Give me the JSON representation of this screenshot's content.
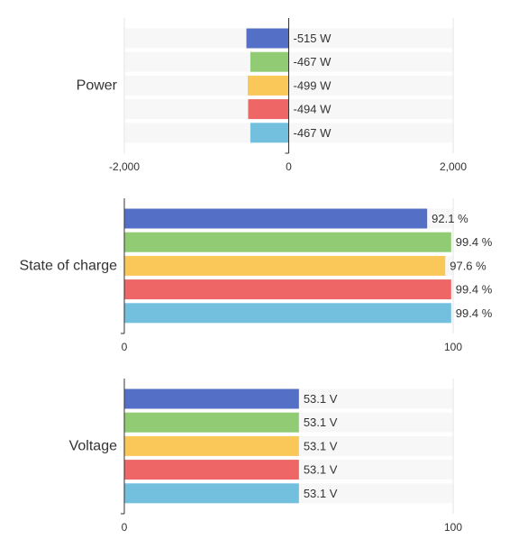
{
  "chart_data": [
    {
      "type": "bar",
      "orientation": "horizontal",
      "category": "Power",
      "values": [
        -515,
        -467,
        -499,
        -494,
        -467
      ],
      "value_labels": [
        "-515 W",
        "-467 W",
        "-499 W",
        "-494 W",
        "-467 W"
      ],
      "colors": [
        "#5470c6",
        "#91cc75",
        "#fac858",
        "#ee6666",
        "#73c0de"
      ],
      "xlim": [
        -2000,
        2000
      ],
      "ticks": [
        -2000,
        0,
        2000
      ],
      "tick_labels": [
        "-2,000",
        "0",
        "2,000"
      ],
      "grid": true,
      "legend": "none"
    },
    {
      "type": "bar",
      "orientation": "horizontal",
      "category": "State of charge",
      "values": [
        92.1,
        99.4,
        97.6,
        99.4,
        99.4
      ],
      "value_labels": [
        "92.1 %",
        "99.4 %",
        "97.6 %",
        "99.4 %",
        "99.4 %"
      ],
      "colors": [
        "#5470c6",
        "#91cc75",
        "#fac858",
        "#ee6666",
        "#73c0de"
      ],
      "xlim": [
        0,
        100
      ],
      "ticks": [
        0,
        100
      ],
      "tick_labels": [
        "0",
        "100"
      ],
      "grid": true,
      "legend": "none"
    },
    {
      "type": "bar",
      "orientation": "horizontal",
      "category": "Voltage",
      "values": [
        53.1,
        53.1,
        53.1,
        53.1,
        53.1
      ],
      "value_labels": [
        "53.1 V",
        "53.1 V",
        "53.1 V",
        "53.1 V",
        "53.1 V"
      ],
      "colors": [
        "#5470c6",
        "#91cc75",
        "#fac858",
        "#ee6666",
        "#73c0de"
      ],
      "xlim": [
        0,
        100
      ],
      "ticks": [
        0,
        100
      ],
      "tick_labels": [
        "0",
        "100"
      ],
      "grid": true,
      "legend": "none"
    }
  ]
}
